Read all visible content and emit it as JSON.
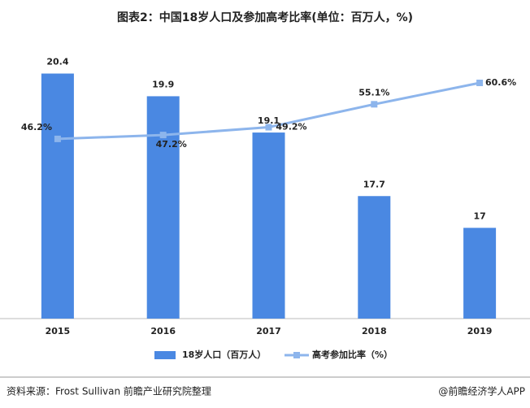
{
  "chart_data": {
    "type": "bar-line",
    "title": "图表2：中国18岁人口及参加高考比率(单位：百万人，%)",
    "categories": [
      "2015",
      "2016",
      "2017",
      "2018",
      "2019"
    ],
    "series": [
      {
        "name": "18岁人口（百万人）",
        "color": "#4a88e2",
        "type": "bar",
        "values": [
          20.4,
          19.9,
          19.1,
          17.7,
          17
        ]
      },
      {
        "name": "高考参加比率（%）",
        "color": "#8db5ec",
        "type": "line",
        "axis": "y2",
        "values": [
          46.2,
          47.2,
          49.2,
          55.1,
          60.6
        ],
        "value_labels": [
          "46.2%",
          "47.2%",
          "49.2%",
          "55.1%",
          "60.6%"
        ]
      }
    ],
    "ylim": [
      15,
      21
    ],
    "y2lim": [
      0,
      70
    ],
    "source": "资料来源：Frost Sullivan 前瞻产业研究院整理",
    "brand": "@前瞻经济学人APP"
  }
}
